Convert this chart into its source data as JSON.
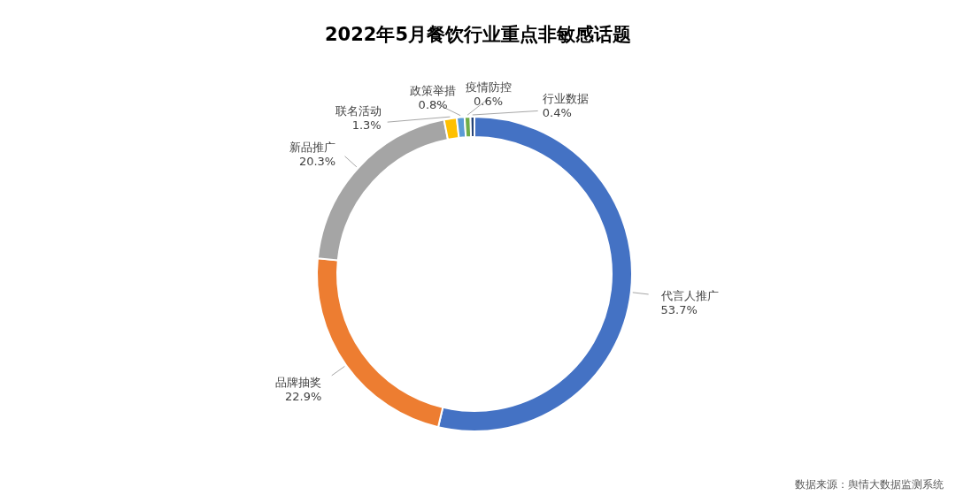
{
  "chart_data": {
    "type": "donut",
    "title": "2022年5月餐饮行业重点非敏感话题",
    "categories": [
      "代言人推广",
      "品牌抽奖",
      "新品推广",
      "联名活动",
      "政策举措",
      "疫情防控",
      "行业数据"
    ],
    "values": [
      53.7,
      22.9,
      20.3,
      1.3,
      0.8,
      0.6,
      0.4
    ],
    "value_labels": [
      "53.7%",
      "22.9%",
      "20.3%",
      "1.3%",
      "0.8%",
      "0.6%",
      "0.4%"
    ],
    "colors": [
      "#4472c4",
      "#ed7d31",
      "#a5a5a5",
      "#ffc000",
      "#5b9bd5",
      "#70ad47",
      "#264478"
    ],
    "annotations": [
      "数据来源：舆情大数据监测系统"
    ]
  }
}
